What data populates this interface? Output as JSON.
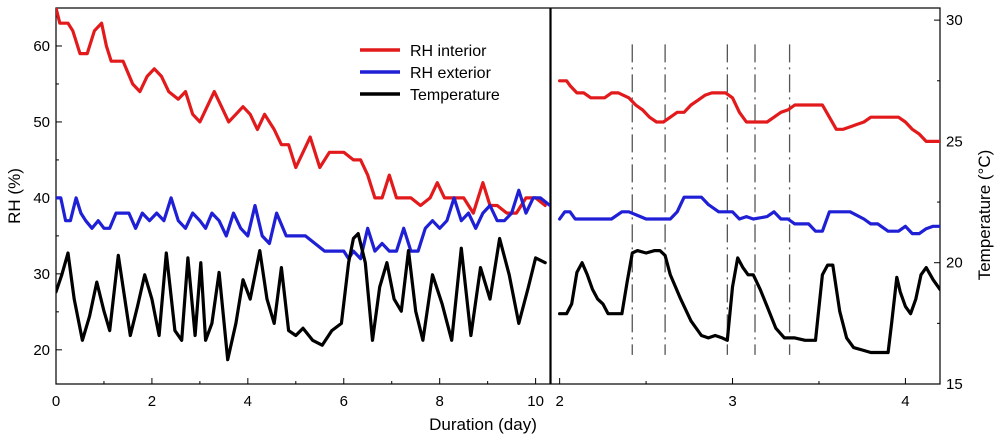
{
  "chart_data": [
    {
      "type": "line",
      "panel": "left",
      "xlabel": "Duration (day)",
      "ylabel": "RH (%)",
      "xlim": [
        0,
        10.3
      ],
      "ylim": [
        15.5,
        65
      ],
      "xticks": [
        0,
        2,
        4,
        6,
        8,
        10
      ],
      "yticks": [
        20,
        30,
        40,
        50,
        60
      ],
      "y2label": "Temperature (°C)",
      "y2lim": [
        15,
        30.5
      ],
      "legend": {
        "position": "top-right",
        "entries": [
          "RH interior",
          "RH exterior",
          "Temperature"
        ]
      },
      "series": [
        {
          "name": "RH interior",
          "color": "#e31a1c",
          "axis": "left",
          "x": [
            0.0,
            0.08,
            0.25,
            0.35,
            0.5,
            0.65,
            0.8,
            0.95,
            1.05,
            1.15,
            1.4,
            1.6,
            1.75,
            1.9,
            2.05,
            2.2,
            2.35,
            2.55,
            2.7,
            2.85,
            3.0,
            3.15,
            3.3,
            3.45,
            3.6,
            3.75,
            3.9,
            4.05,
            4.2,
            4.35,
            4.55,
            4.7,
            4.85,
            5.0,
            5.15,
            5.3,
            5.5,
            5.7,
            6.0,
            6.2,
            6.35,
            6.5,
            6.65,
            6.8,
            6.95,
            7.1,
            7.4,
            7.6,
            7.8,
            7.95,
            8.1,
            8.3,
            8.5,
            8.7,
            8.9,
            9.05,
            9.2,
            9.4,
            9.6,
            9.8,
            10.0,
            10.2
          ],
          "values": [
            65,
            63,
            63,
            62,
            59,
            59,
            62,
            63,
            60,
            58,
            58,
            55,
            54,
            56,
            57,
            56,
            54,
            53,
            54,
            51,
            50,
            52,
            54,
            52,
            50,
            51,
            52,
            51,
            49,
            51,
            49,
            47,
            47,
            44,
            46,
            48,
            44,
            46,
            46,
            45,
            45,
            43,
            40,
            40,
            43,
            40,
            40,
            39,
            40,
            42,
            40,
            40,
            40,
            38,
            42,
            39,
            39,
            38,
            38,
            40,
            40,
            39
          ]
        },
        {
          "name": "RH exterior",
          "color": "#1f1fd6",
          "axis": "left",
          "x": [
            0.0,
            0.1,
            0.2,
            0.3,
            0.42,
            0.52,
            0.62,
            0.75,
            0.88,
            1.0,
            1.12,
            1.25,
            1.38,
            1.52,
            1.66,
            1.8,
            1.95,
            2.1,
            2.25,
            2.4,
            2.55,
            2.7,
            2.85,
            3.0,
            3.12,
            3.25,
            3.4,
            3.55,
            3.7,
            3.85,
            4.0,
            4.15,
            4.3,
            4.45,
            4.6,
            4.8,
            5.0,
            5.2,
            5.4,
            5.6,
            5.8,
            6.0,
            6.1,
            6.2,
            6.35,
            6.5,
            6.65,
            6.8,
            6.95,
            7.1,
            7.25,
            7.4,
            7.55,
            7.7,
            7.85,
            8.0,
            8.15,
            8.3,
            8.45,
            8.6,
            8.75,
            8.9,
            9.05,
            9.2,
            9.35,
            9.5,
            9.65,
            9.8,
            9.95,
            10.1,
            10.3
          ],
          "values": [
            40,
            40,
            37,
            37,
            40,
            38,
            37,
            36,
            37,
            36,
            36,
            38,
            38,
            38,
            36,
            38,
            37,
            38,
            37,
            40,
            37,
            36,
            38,
            37,
            36,
            38,
            37,
            35,
            38,
            36,
            35,
            39,
            35,
            34,
            38,
            35,
            35,
            35,
            34,
            33,
            33,
            33,
            32,
            33,
            32,
            36,
            33,
            34,
            33,
            33,
            36,
            33,
            33,
            36,
            37,
            36,
            37,
            40,
            37,
            38,
            36,
            38,
            39,
            37,
            37,
            38,
            41,
            38,
            40,
            40,
            39
          ]
        },
        {
          "name": "Temperature",
          "color": "#000000",
          "axis": "right",
          "x": [
            0.0,
            0.12,
            0.25,
            0.38,
            0.55,
            0.7,
            0.85,
            1.0,
            1.12,
            1.3,
            1.55,
            1.7,
            1.85,
            2.0,
            2.15,
            2.3,
            2.48,
            2.62,
            2.75,
            2.9,
            3.02,
            3.12,
            3.25,
            3.4,
            3.58,
            3.75,
            3.9,
            4.05,
            4.25,
            4.4,
            4.55,
            4.7,
            4.85,
            5.0,
            5.15,
            5.35,
            5.55,
            5.75,
            5.95,
            6.1,
            6.2,
            6.3,
            6.45,
            6.6,
            6.75,
            6.9,
            7.05,
            7.2,
            7.35,
            7.5,
            7.65,
            7.85,
            8.05,
            8.25,
            8.45,
            8.65,
            8.85,
            9.05,
            9.25,
            9.45,
            9.65,
            9.85,
            10.0,
            10.2
          ],
          "values": [
            18.8,
            19.5,
            20.4,
            18.5,
            16.8,
            17.8,
            19.2,
            18.0,
            17.2,
            20.3,
            17.0,
            18.2,
            19.5,
            18.5,
            17.0,
            20.4,
            17.2,
            16.8,
            20.2,
            17.0,
            20.0,
            16.8,
            17.5,
            19.6,
            16.0,
            17.5,
            19.3,
            18.5,
            20.5,
            18.5,
            17.5,
            19.8,
            17.2,
            17.0,
            17.3,
            16.8,
            16.6,
            17.2,
            17.5,
            20.0,
            21.0,
            21.2,
            20.0,
            16.8,
            19.0,
            20.0,
            18.5,
            18.0,
            20.5,
            18.0,
            16.8,
            19.5,
            18.3,
            16.8,
            20.6,
            17.0,
            19.8,
            18.5,
            21.0,
            19.5,
            17.5,
            19.0,
            20.2,
            20.0
          ]
        }
      ]
    },
    {
      "type": "line",
      "panel": "right",
      "xlabel": "",
      "ylabel": "",
      "y2label": "Temperature (°C)",
      "xlim": [
        1.95,
        4.2
      ],
      "xticks": [
        2,
        3,
        4
      ],
      "yticks": [
        15,
        20,
        25,
        30
      ],
      "ylim": [
        15,
        30.5
      ],
      "annotations": {
        "vertical_dashed_lines_at_x": [
          2.42,
          2.61,
          2.97,
          3.13,
          3.33
        ]
      },
      "series": [
        {
          "name": "RH interior",
          "color": "#e31a1c",
          "x": [
            2.0,
            2.04,
            2.06,
            2.1,
            2.14,
            2.18,
            2.22,
            2.26,
            2.3,
            2.34,
            2.4,
            2.44,
            2.48,
            2.52,
            2.56,
            2.6,
            2.64,
            2.68,
            2.72,
            2.76,
            2.8,
            2.84,
            2.88,
            2.92,
            2.96,
            3.0,
            3.04,
            3.08,
            3.12,
            3.16,
            3.2,
            3.24,
            3.28,
            3.32,
            3.36,
            3.42,
            3.48,
            3.52,
            3.56,
            3.6,
            3.64,
            3.68,
            3.72,
            3.76,
            3.8,
            3.84,
            3.88,
            3.92,
            3.96,
            4.0,
            4.04,
            4.08,
            4.12,
            4.16,
            4.2
          ],
          "values": [
            27.5,
            27.5,
            27.3,
            27.0,
            27.0,
            26.8,
            26.8,
            26.8,
            27.0,
            27.0,
            26.8,
            26.5,
            26.3,
            26.0,
            25.8,
            25.8,
            26.0,
            26.2,
            26.2,
            26.5,
            26.7,
            26.9,
            27.0,
            27.0,
            27.0,
            26.8,
            26.2,
            25.8,
            25.8,
            25.8,
            25.8,
            26.0,
            26.2,
            26.3,
            26.5,
            26.5,
            26.5,
            26.5,
            26.0,
            25.5,
            25.5,
            25.6,
            25.7,
            25.8,
            26.0,
            26.0,
            26.0,
            26.0,
            26.0,
            25.8,
            25.5,
            25.3,
            25.0,
            25.0,
            25.0
          ]
        },
        {
          "name": "RH exterior",
          "color": "#1f1fd6",
          "x": [
            2.0,
            2.03,
            2.06,
            2.09,
            2.12,
            2.2,
            2.3,
            2.36,
            2.4,
            2.5,
            2.6,
            2.64,
            2.68,
            2.72,
            2.76,
            2.82,
            2.86,
            2.92,
            2.96,
            3.0,
            3.04,
            3.08,
            3.12,
            3.2,
            3.24,
            3.28,
            3.32,
            3.36,
            3.44,
            3.48,
            3.52,
            3.56,
            3.6,
            3.64,
            3.68,
            3.76,
            3.8,
            3.84,
            3.9,
            3.96,
            4.0,
            4.04,
            4.08,
            4.12,
            4.16,
            4.2
          ],
          "values": [
            21.8,
            22.1,
            22.1,
            21.8,
            21.8,
            21.8,
            21.8,
            22.1,
            22.1,
            21.8,
            21.8,
            21.8,
            22.1,
            22.7,
            22.7,
            22.7,
            22.4,
            22.1,
            22.1,
            22.1,
            21.8,
            21.9,
            21.8,
            21.9,
            22.1,
            21.8,
            21.8,
            21.6,
            21.6,
            21.3,
            21.3,
            22.1,
            22.1,
            22.1,
            22.1,
            21.8,
            21.6,
            21.6,
            21.3,
            21.3,
            21.5,
            21.2,
            21.2,
            21.4,
            21.5,
            21.5
          ]
        },
        {
          "name": "Temperature",
          "color": "#000000",
          "x": [
            2.0,
            2.04,
            2.07,
            2.1,
            2.13,
            2.16,
            2.19,
            2.22,
            2.25,
            2.28,
            2.32,
            2.36,
            2.39,
            2.42,
            2.45,
            2.5,
            2.55,
            2.58,
            2.61,
            2.64,
            2.7,
            2.76,
            2.82,
            2.86,
            2.9,
            2.94,
            2.97,
            3.0,
            3.03,
            3.06,
            3.09,
            3.12,
            3.16,
            3.2,
            3.25,
            3.3,
            3.36,
            3.42,
            3.48,
            3.52,
            3.55,
            3.58,
            3.62,
            3.66,
            3.7,
            3.75,
            3.8,
            3.85,
            3.9,
            3.92,
            3.95,
            3.97,
            4.0,
            4.03,
            4.06,
            4.09,
            4.12,
            4.16,
            4.2
          ],
          "values": [
            17.9,
            17.9,
            18.3,
            19.6,
            20.0,
            19.5,
            18.9,
            18.5,
            18.3,
            17.9,
            17.9,
            17.9,
            19.2,
            20.4,
            20.5,
            20.4,
            20.5,
            20.5,
            20.3,
            19.5,
            18.5,
            17.6,
            17.0,
            16.9,
            17.0,
            16.9,
            16.8,
            19.0,
            20.2,
            19.8,
            19.5,
            19.5,
            18.9,
            18.2,
            17.3,
            16.9,
            16.9,
            16.8,
            16.8,
            19.5,
            19.9,
            19.9,
            18.0,
            16.9,
            16.5,
            16.4,
            16.3,
            16.3,
            16.3,
            17.5,
            19.4,
            18.8,
            18.2,
            17.9,
            18.5,
            19.5,
            19.8,
            19.3,
            18.9
          ]
        }
      ]
    }
  ]
}
